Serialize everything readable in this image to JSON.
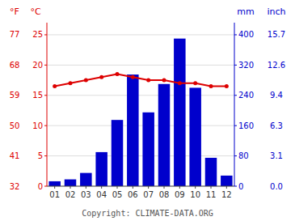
{
  "chart_data": {
    "type": "bar",
    "categories": [
      "01",
      "02",
      "03",
      "04",
      "05",
      "06",
      "07",
      "08",
      "09",
      "10",
      "11",
      "12"
    ],
    "series": [
      {
        "type": "bar",
        "color": "#0000cc",
        "axis": "y2",
        "values": [
          13,
          18,
          35,
          90,
          175,
          295,
          195,
          270,
          390,
          260,
          75,
          28
        ]
      },
      {
        "type": "line",
        "color": "#dd0000",
        "marker": "circle",
        "values": [
          16.5,
          17.0,
          17.5,
          18.0,
          18.5,
          18.0,
          17.5,
          17.5,
          17.0,
          17.0,
          16.5,
          16.5
        ]
      }
    ],
    "ylabel": "°C",
    "ylim": [
      0,
      27
    ],
    "yticks": [
      0,
      5,
      10,
      15,
      20,
      25
    ],
    "y_alt_label": "°F",
    "y_alt_ticks": [
      {
        "value": 0,
        "label": "32"
      },
      {
        "value": 5,
        "label": "41"
      },
      {
        "value": 10,
        "label": "50"
      },
      {
        "value": 15,
        "label": "59"
      },
      {
        "value": 20,
        "label": "68"
      },
      {
        "value": 25,
        "label": "77"
      }
    ],
    "y2label": "mm",
    "y2lim": [
      0,
      432
    ],
    "y2ticks": [
      0,
      80,
      160,
      240,
      320,
      400
    ],
    "y2_alt_label": "inch",
    "y2_alt_ticks": [
      {
        "value": 0,
        "label": "0.0"
      },
      {
        "value": 80,
        "label": "3.1"
      },
      {
        "value": 160,
        "label": "6.3"
      },
      {
        "value": 240,
        "label": "9.4"
      },
      {
        "value": 320,
        "label": "12.6"
      },
      {
        "value": 400,
        "label": "15.7"
      }
    ],
    "grid": true,
    "annotations": [
      "Copyright: CLIMATE-DATA.ORG"
    ]
  }
}
